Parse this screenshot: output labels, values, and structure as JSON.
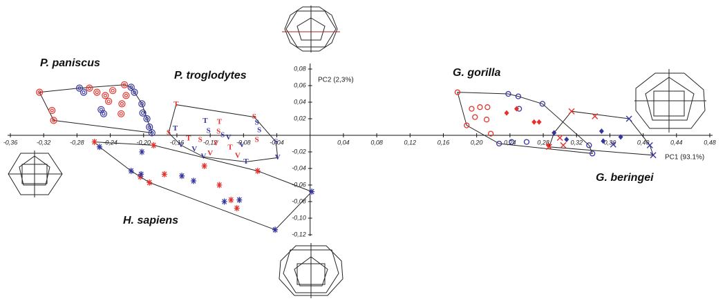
{
  "chart_data": {
    "type": "scatter",
    "x_label": "PC1 (93.1%)",
    "y_label": "PC2 (2,3%)",
    "xlim": [
      -0.36,
      0.48
    ],
    "ylim": [
      -0.12,
      0.08
    ],
    "xticks": [
      {
        "value": -0.36,
        "label": "-0,36"
      },
      {
        "value": -0.32,
        "label": "-0,32"
      },
      {
        "value": -0.28,
        "label": "-0,28"
      },
      {
        "value": -0.24,
        "label": "-0,24"
      },
      {
        "value": -0.2,
        "label": "-0,20"
      },
      {
        "value": -0.16,
        "label": "-0,16"
      },
      {
        "value": -0.12,
        "label": "-0,12"
      },
      {
        "value": -0.08,
        "label": "-0,08"
      },
      {
        "value": -0.04,
        "label": "-0,04"
      },
      {
        "value": 0.04,
        "label": "0,04"
      },
      {
        "value": 0.08,
        "label": "0,08"
      },
      {
        "value": 0.12,
        "label": "0,12"
      },
      {
        "value": 0.16,
        "label": "0,16"
      },
      {
        "value": 0.2,
        "label": "0,20"
      },
      {
        "value": 0.24,
        "label": "0,24"
      },
      {
        "value": 0.28,
        "label": "0,28"
      },
      {
        "value": 0.32,
        "label": "0,32"
      },
      {
        "value": 0.36,
        "label": "0,36"
      },
      {
        "value": 0.4,
        "label": "0,40"
      },
      {
        "value": 0.44,
        "label": "0,44"
      },
      {
        "value": 0.48,
        "label": "0,48"
      }
    ],
    "yticks": [
      {
        "value": 0.08,
        "label": "0,08"
      },
      {
        "value": 0.06,
        "label": "0,06"
      },
      {
        "value": 0.04,
        "label": "0,04"
      },
      {
        "value": 0.02,
        "label": "0,02"
      },
      {
        "value": -0.02,
        "label": "-0,02"
      },
      {
        "value": -0.04,
        "label": "-0,04"
      },
      {
        "value": -0.06,
        "label": "-0,06"
      },
      {
        "value": -0.08,
        "label": "-0,08"
      },
      {
        "value": -0.1,
        "label": "-0,10"
      },
      {
        "value": -0.12,
        "label": "-0,12"
      }
    ],
    "groups": [
      {
        "label": "P. paniscus",
        "series": [
          {
            "color": "#e8302a",
            "marker": "ring",
            "x": [
              -0.325,
              -0.31,
              -0.308,
              -0.265,
              -0.256,
              -0.246,
              -0.237,
              -0.223,
              -0.242,
              -0.226,
              -0.227,
              -0.221
            ],
            "y": [
              0.052,
              0.03,
              0.018,
              0.057,
              0.052,
              0.048,
              0.054,
              0.061,
              0.041,
              0.038,
              0.026,
              0.048
            ]
          },
          {
            "color": "#3535a0",
            "marker": "ring",
            "x": [
              -0.277,
              -0.272,
              -0.215,
              -0.211,
              -0.202,
              -0.201,
              -0.196,
              -0.193,
              -0.19,
              -0.251,
              -0.248
            ],
            "y": [
              0.057,
              0.052,
              0.058,
              0.052,
              0.038,
              0.027,
              0.02,
              0.01,
              0.003,
              0.031,
              0.026
            ]
          }
        ]
      },
      {
        "label": "P. troglodytes",
        "series": [
          {
            "color": "#e8302a",
            "marker": "T",
            "x": [
              -0.161,
              -0.109,
              -0.096,
              -0.146
            ],
            "y": [
              0.037,
              0.016,
              -0.015,
              -0.004
            ]
          },
          {
            "color": "#3535a0",
            "marker": "T",
            "x": [
              -0.162,
              -0.126,
              -0.077
            ],
            "y": [
              0.008,
              0.017,
              -0.032
            ]
          },
          {
            "color": "#e8302a",
            "marker": "S",
            "x": [
              -0.17,
              -0.067,
              -0.064,
              -0.132,
              -0.11
            ],
            "y": [
              0.003,
              0.022,
              -0.006,
              -0.006,
              0.004
            ]
          },
          {
            "color": "#3535a0",
            "marker": "S",
            "x": [
              -0.064,
              -0.061,
              -0.041,
              -0.122,
              -0.105
            ],
            "y": [
              0.015,
              0.006,
              -0.008,
              0.005,
              0.0
            ]
          },
          {
            "color": "#e8302a",
            "marker": "V",
            "x": [
              -0.087,
              -0.12,
              -0.113
            ],
            "y": [
              -0.025,
              -0.022,
              -0.01
            ]
          },
          {
            "color": "#3535a0",
            "marker": "V",
            "x": [
              -0.039,
              -0.082,
              -0.155,
              -0.139,
              -0.098,
              -0.128
            ],
            "y": [
              -0.027,
              -0.012,
              -0.012,
              -0.017,
              -0.003,
              -0.026
            ]
          }
        ]
      },
      {
        "label": "H. sapiens",
        "series": [
          {
            "color": "#e8302a",
            "marker": "asterisk",
            "x": [
              -0.259,
              -0.204,
              -0.193,
              -0.175,
              -0.127,
              -0.109,
              -0.095,
              -0.088,
              -0.063,
              -0.188
            ],
            "y": [
              -0.008,
              -0.05,
              -0.057,
              -0.047,
              -0.037,
              -0.06,
              -0.078,
              -0.088,
              -0.043,
              -0.012
            ]
          },
          {
            "color": "#3535a0",
            "marker": "asterisk",
            "x": [
              -0.253,
              -0.202,
              -0.215,
              -0.203,
              -0.154,
              -0.14,
              -0.103,
              -0.085,
              -0.042,
              0.002
            ],
            "y": [
              -0.014,
              -0.02,
              -0.043,
              -0.047,
              -0.049,
              -0.055,
              -0.08,
              -0.078,
              -0.114,
              -0.068
            ]
          }
        ]
      },
      {
        "label": "G. gorilla",
        "series": [
          {
            "color": "#e8302a",
            "marker": "circle",
            "x": [
              0.177,
              0.194,
              0.204,
              0.213,
              0.198,
              0.212,
              0.188,
              0.217
            ],
            "y": [
              0.052,
              0.032,
              0.034,
              0.034,
              0.022,
              0.019,
              0.012,
              0.002
            ]
          },
          {
            "color": "#3535a0",
            "marker": "circle",
            "x": [
              0.238,
              0.25,
              0.279,
              0.251,
              0.227,
              0.242,
              0.26,
              0.335,
              0.339
            ],
            "y": [
              0.05,
              0.047,
              0.038,
              0.032,
              -0.01,
              -0.008,
              -0.008,
              -0.012,
              -0.022
            ]
          },
          {
            "color": "#e8302a",
            "marker": "diamond",
            "x": [
              0.236,
              0.248,
              0.269,
              0.275,
              0.286
            ],
            "y": [
              0.027,
              0.032,
              0.016,
              0.016,
              -0.012
            ]
          }
        ]
      },
      {
        "label": "G. beringei",
        "series": [
          {
            "color": "#3535a0",
            "marker": "diamond",
            "x": [
              0.293,
              0.308,
              0.35,
              0.352,
              0.373
            ],
            "y": [
              0.003,
              -0.005,
              0.005,
              -0.007,
              -0.002
            ]
          },
          {
            "color": "#e8302a",
            "marker": "cross",
            "x": [
              0.314,
              0.342,
              0.3,
              0.304,
              0.287
            ],
            "y": [
              0.029,
              0.023,
              -0.003,
              -0.012,
              -0.014
            ]
          },
          {
            "color": "#3535a0",
            "marker": "cross",
            "x": [
              0.383,
              0.364,
              0.408,
              0.412
            ],
            "y": [
              0.02,
              -0.011,
              -0.012,
              -0.024
            ]
          }
        ]
      }
    ]
  }
}
